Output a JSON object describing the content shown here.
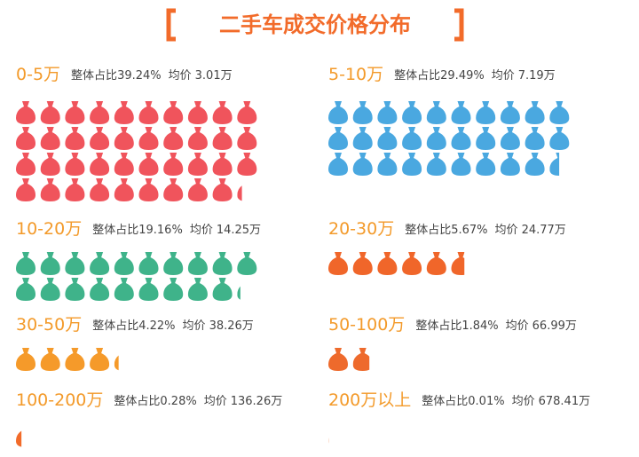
{
  "chart_data": {
    "type": "pictograph",
    "title": "二手车成交价格分布",
    "categories": [
      "0-5万",
      "5-10万",
      "10-20万",
      "20-30万",
      "30-50万",
      "50-100万",
      "100-200万",
      "200万以上"
    ],
    "share_label": "整体占比",
    "price_label": "均价",
    "values": [
      39.24,
      29.49,
      19.16,
      5.67,
      4.22,
      1.84,
      0.28,
      0.01
    ],
    "value_labels": [
      "39.24%",
      "29.49%",
      "19.16%",
      "5.67%",
      "4.22%",
      "1.84%",
      "0.28%",
      "0.01%"
    ],
    "prices": [
      3.01,
      7.19,
      14.25,
      24.77,
      38.26,
      66.99,
      136.26,
      678.41
    ],
    "price_labels": [
      "3.01万",
      "7.19万",
      "14.25万",
      "24.77万",
      "38.26万",
      "66.99万",
      "136.26万",
      "678.41万"
    ],
    "colors": [
      "#f0545c",
      "#4aa8e0",
      "#3fb38a",
      "#f0662a",
      "#f59a2a",
      "#ee6a2c",
      "#f26b2a",
      "#f26b2a"
    ]
  }
}
